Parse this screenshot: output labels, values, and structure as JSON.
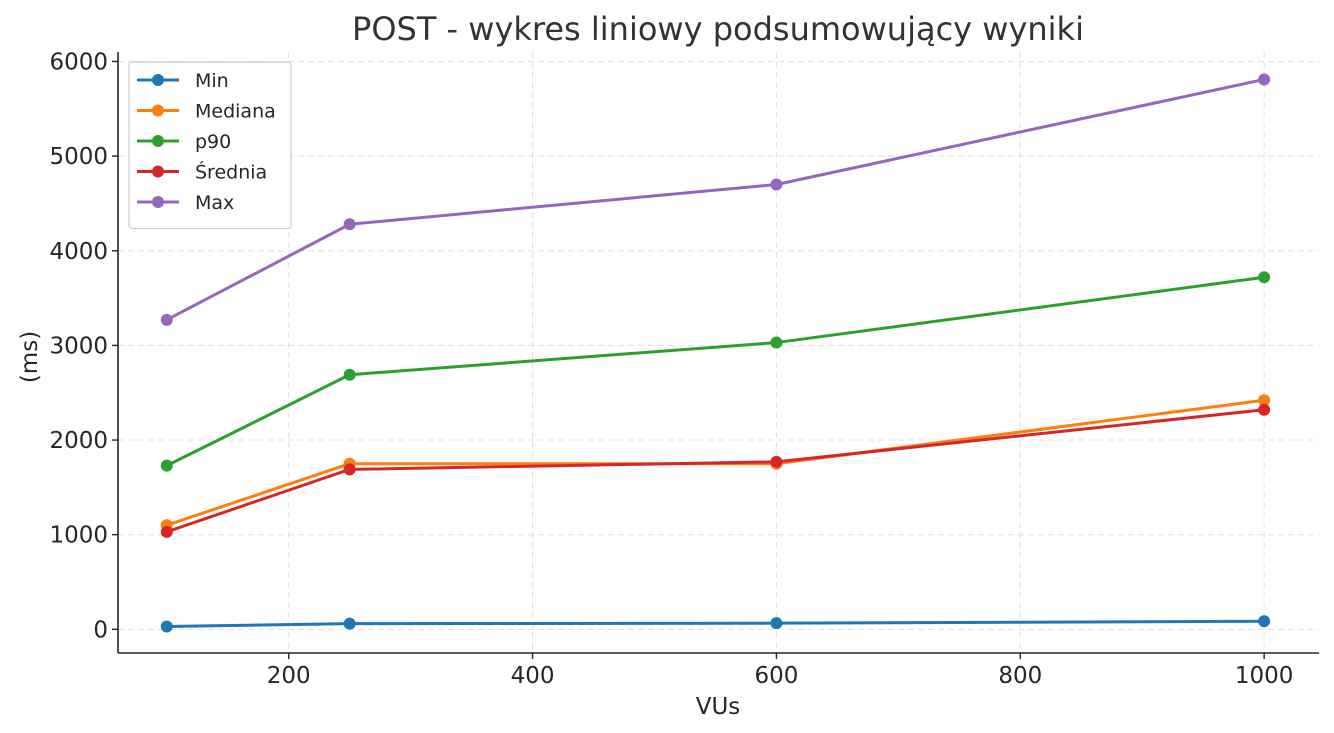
{
  "chart_data": {
    "type": "line",
    "title": "POST - wykres liniowy podsumowujący wyniki",
    "xlabel": "VUs",
    "ylabel": "(ms)",
    "x": [
      100,
      250,
      600,
      1000
    ],
    "xlim": [
      60,
      1045
    ],
    "ylim": [
      -250,
      6100
    ],
    "xticks": [
      200,
      400,
      600,
      800,
      1000
    ],
    "yticks": [
      0,
      1000,
      2000,
      3000,
      4000,
      5000,
      6000
    ],
    "grid": true,
    "legend_position": "top-left",
    "series": [
      {
        "name": "Min",
        "color": "#1f77b4",
        "values": [
          30,
          60,
          65,
          85
        ]
      },
      {
        "name": "Mediana",
        "color": "#ff7f0e",
        "values": [
          1100,
          1750,
          1750,
          2420
        ]
      },
      {
        "name": "p90",
        "color": "#2ca02c",
        "values": [
          1730,
          2690,
          3030,
          3720
        ]
      },
      {
        "name": "Średnia",
        "color": "#d62728",
        "values": [
          1030,
          1690,
          1770,
          2320
        ]
      },
      {
        "name": "Max",
        "color": "#9467bd",
        "values": [
          3270,
          4280,
          4700,
          5810
        ]
      }
    ]
  }
}
